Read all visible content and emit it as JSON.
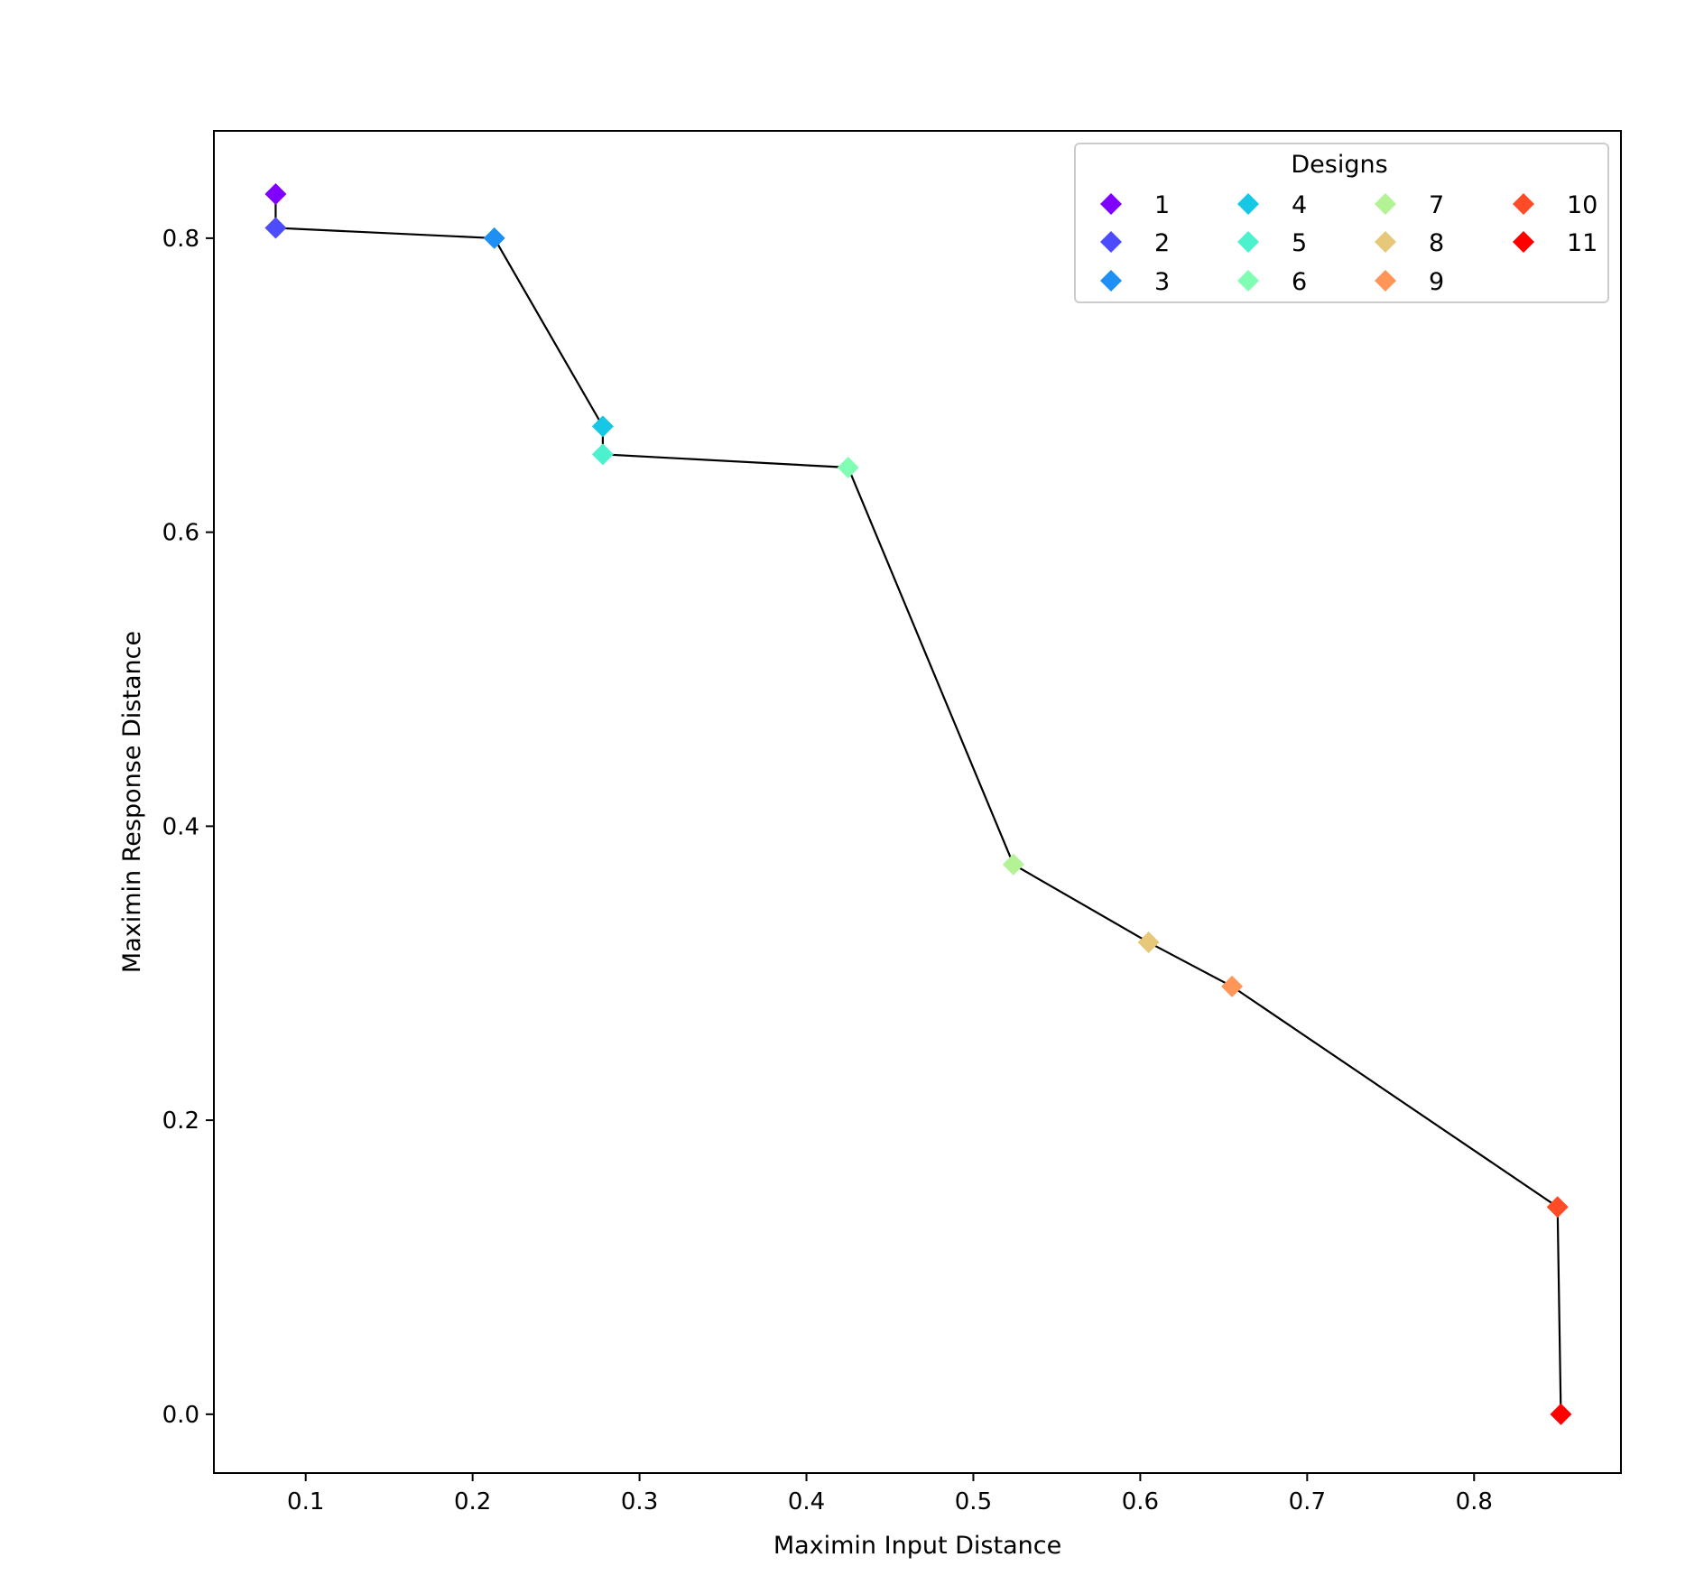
{
  "chart_data": {
    "type": "scatter",
    "title": "",
    "xlabel": "Maximin Input Distance",
    "ylabel": "Maximin Response Distance",
    "xlim": [
      0.045,
      0.888
    ],
    "ylim": [
      -0.04,
      0.873
    ],
    "x_ticks": [
      0.1,
      0.2,
      0.3,
      0.4,
      0.5,
      0.6,
      0.7,
      0.8
    ],
    "y_ticks": [
      0.0,
      0.2,
      0.4,
      0.6,
      0.8
    ],
    "grid": false,
    "marker": "diamond",
    "connecting_line": true,
    "line_color": "#000000",
    "legend": {
      "title": "Designs",
      "placement": "top-right",
      "columns": 4
    },
    "series": [
      {
        "name": "1",
        "x": 0.082,
        "y": 0.83,
        "color": "#8000ff"
      },
      {
        "name": "2",
        "x": 0.082,
        "y": 0.807,
        "color": "#4c4cfc"
      },
      {
        "name": "3",
        "x": 0.213,
        "y": 0.8,
        "color": "#1e90f5"
      },
      {
        "name": "4",
        "x": 0.278,
        "y": 0.672,
        "color": "#16c8e6"
      },
      {
        "name": "5",
        "x": 0.278,
        "y": 0.653,
        "color": "#4cf2ce"
      },
      {
        "name": "6",
        "x": 0.425,
        "y": 0.644,
        "color": "#80ffb4"
      },
      {
        "name": "7",
        "x": 0.524,
        "y": 0.374,
        "color": "#b4f296"
      },
      {
        "name": "8",
        "x": 0.605,
        "y": 0.321,
        "color": "#e6c878"
      },
      {
        "name": "9",
        "x": 0.655,
        "y": 0.291,
        "color": "#ff9658"
      },
      {
        "name": "10",
        "x": 0.85,
        "y": 0.141,
        "color": "#ff4c27"
      },
      {
        "name": "11",
        "x": 0.852,
        "y": 0.0,
        "color": "#ff0000"
      }
    ]
  }
}
